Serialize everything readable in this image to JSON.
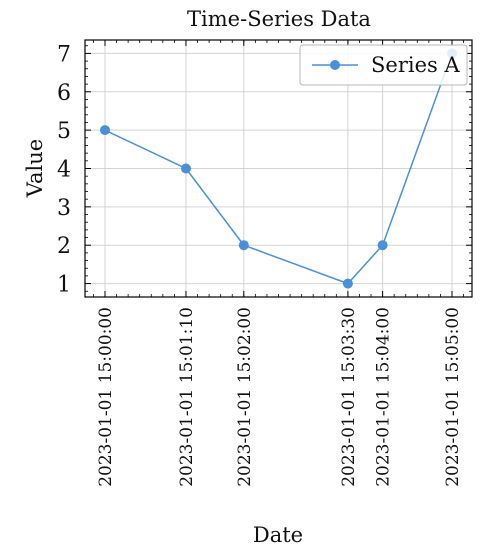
{
  "chart_data": {
    "type": "line",
    "title": "Time-Series Data",
    "xlabel": "Date",
    "ylabel": "Value",
    "x": [
      "2023-01-01 15:00:00",
      "2023-01-01 15:01:10",
      "2023-01-01 15:02:00",
      "2023-01-01 15:03:30",
      "2023-01-01 15:04:00",
      "2023-01-01 15:05:00"
    ],
    "xticks": [
      "2023-01-01 15:00:00",
      "2023-01-01 15:01:10",
      "2023-01-01 15:02:00",
      "2023-01-01 15:03:30",
      "2023-01-01 15:04:00",
      "2023-01-01 15:05:00"
    ],
    "series": [
      {
        "name": "Series A",
        "values": [
          5,
          4,
          2,
          1,
          2,
          7
        ],
        "color": "#4a90d9"
      }
    ],
    "yticks": [
      1,
      2,
      3,
      4,
      5,
      6,
      7
    ],
    "ylim": [
      0.65,
      7.35
    ],
    "grid": true,
    "legend": "top-right"
  }
}
